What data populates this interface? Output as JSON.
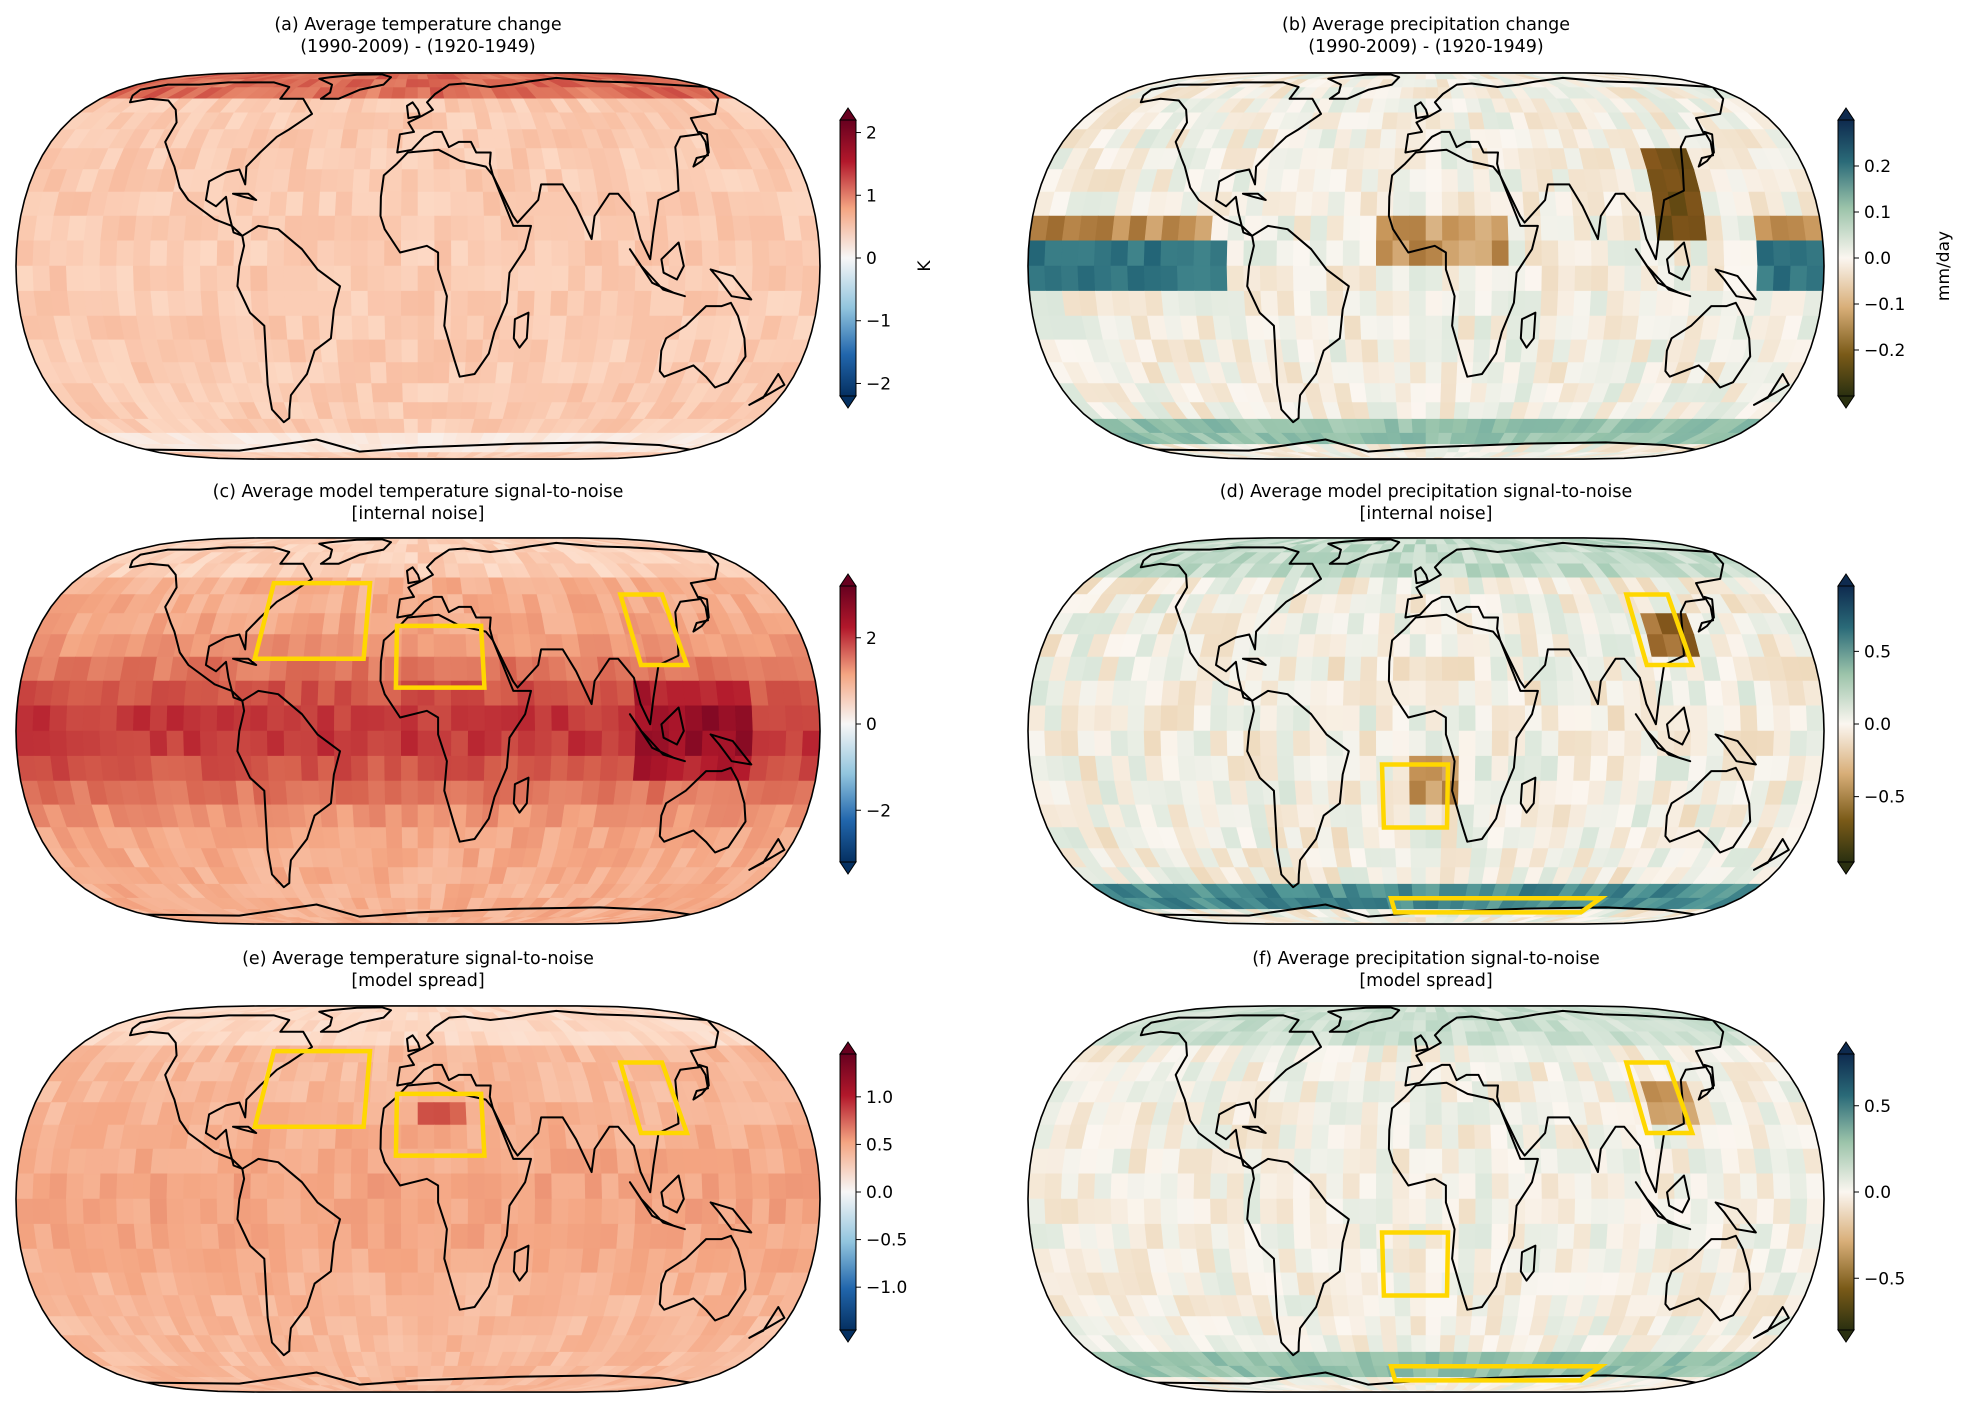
{
  "figure": {
    "panels": [
      {
        "id": "a",
        "title_line1": "(a) Average temperature change",
        "title_line2": "(1990-2009) - (1920-1949)",
        "colormap": "RdBu_r",
        "colorbar": {
          "label": "K",
          "ticks": [
            "2",
            "1",
            "0",
            "−1",
            "−2"
          ],
          "range": [
            -2.2,
            2.2
          ]
        },
        "regions": []
      },
      {
        "id": "b",
        "title_line1": "(b) Average precipitation change",
        "title_line2": "(1990-2009) - (1920-1949)",
        "colormap": "BrBG_dark",
        "colorbar": {
          "label": "mm/day",
          "ticks": [
            "0.2",
            "0.1",
            "0.0",
            "−0.1",
            "−0.2"
          ],
          "range": [
            -0.3,
            0.3
          ]
        },
        "regions": []
      },
      {
        "id": "c",
        "title_line1": "(c) Average model temperature signal-to-noise",
        "title_line2": "[internal noise]",
        "colormap": "RdBu_r",
        "colorbar": {
          "label": "",
          "ticks": [
            "2",
            "0",
            "−2"
          ],
          "range": [
            -3.2,
            3.2
          ]
        },
        "regions": [
          "North Atlantic",
          "North Africa",
          "East Asia"
        ]
      },
      {
        "id": "d",
        "title_line1": "(d) Average model precipitation signal-to-noise",
        "title_line2": "[internal noise]",
        "colormap": "BrBG_dark",
        "colorbar": {
          "label": "",
          "ticks": [
            "0.5",
            "0.0",
            "−0.5"
          ],
          "range": [
            -0.95,
            0.95
          ]
        },
        "regions": [
          "East Asia",
          "South Atlantic",
          "Southern Ocean"
        ]
      },
      {
        "id": "e",
        "title_line1": "(e) Average temperature signal-to-noise",
        "title_line2": "[model spread]",
        "colormap": "RdBu_r",
        "colorbar": {
          "label": "",
          "ticks": [
            "1.0",
            "0.5",
            "0.0",
            "−0.5",
            "−1.0"
          ],
          "range": [
            -1.45,
            1.45
          ]
        },
        "regions": [
          "North Atlantic",
          "North Africa",
          "East Asia"
        ]
      },
      {
        "id": "f",
        "title_line1": "(f) Average precipitation signal-to-noise",
        "title_line2": "[model spread]",
        "colormap": "BrBG_dark",
        "colorbar": {
          "label": "",
          "ticks": [
            "0.5",
            "0.0",
            "−0.5"
          ],
          "range": [
            -0.8,
            0.8
          ]
        },
        "regions": [
          "East Asia",
          "South Atlantic",
          "Southern Ocean"
        ]
      }
    ],
    "colors": {
      "region_outline": "#ffd700",
      "coastline": "#000000",
      "warm_dark": "#67001f",
      "cool_dark": "#053061",
      "wet_dark": "#1a3c5a",
      "dry_dark": "#2a3010"
    }
  }
}
